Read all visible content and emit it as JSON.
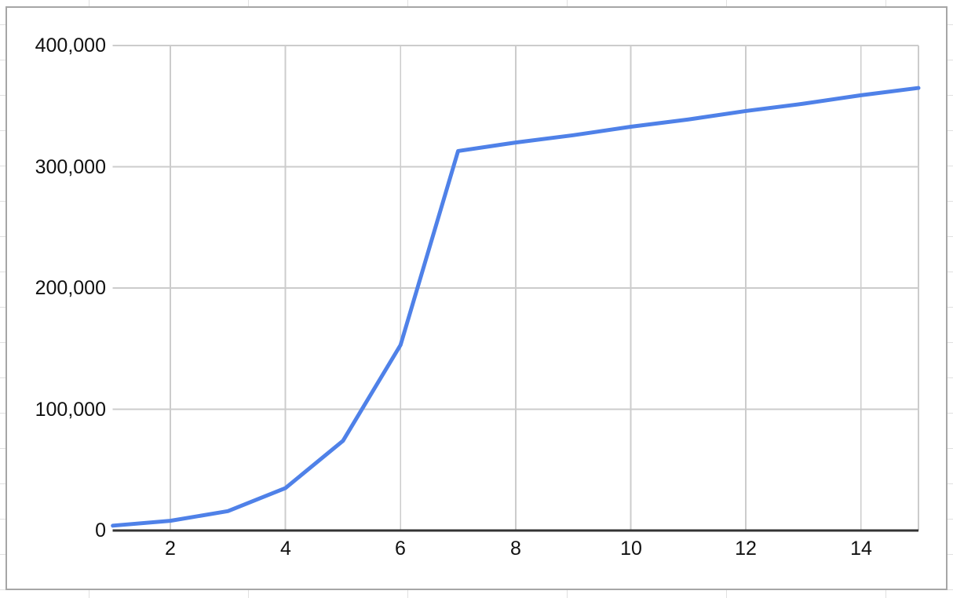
{
  "chart_data": {
    "type": "line",
    "x": [
      1,
      2,
      3,
      4,
      5,
      6,
      7,
      8,
      9,
      10,
      11,
      12,
      13,
      14,
      15
    ],
    "values": [
      4000,
      8000,
      16000,
      35000,
      74000,
      153000,
      313000,
      320000,
      326000,
      333000,
      339000,
      346000,
      352000,
      359000,
      365000
    ],
    "x_ticks": [
      2,
      4,
      6,
      8,
      10,
      12,
      14
    ],
    "x_tick_labels": [
      "2",
      "4",
      "6",
      "8",
      "10",
      "12",
      "14"
    ],
    "y_ticks": [
      0,
      100000,
      200000,
      300000,
      400000
    ],
    "y_tick_labels": [
      "0",
      "100,000",
      "200,000",
      "300,000",
      "400,000"
    ],
    "xlim": [
      1,
      15
    ],
    "ylim": [
      0,
      400000
    ],
    "grid": true,
    "legend": "none",
    "line_color": "#4f81e8"
  },
  "colors": {
    "line": "#4f81e8",
    "gridline": "#cccccc",
    "axis": "#333333",
    "chart_border": "#a6a6a6",
    "sheet_grid": "#e0e0e0",
    "label": "#111111",
    "background": "#ffffff"
  }
}
